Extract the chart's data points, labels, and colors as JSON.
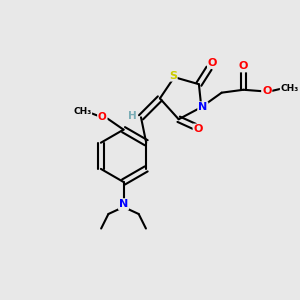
{
  "background_color": "#e8e8e8",
  "atom_colors": {
    "S": "#cccc00",
    "N": "#0000ff",
    "O": "#ff0000",
    "C": "#000000",
    "H": "#7aacb5"
  },
  "figsize": [
    3.0,
    3.0
  ],
  "dpi": 100,
  "lw": 1.5
}
